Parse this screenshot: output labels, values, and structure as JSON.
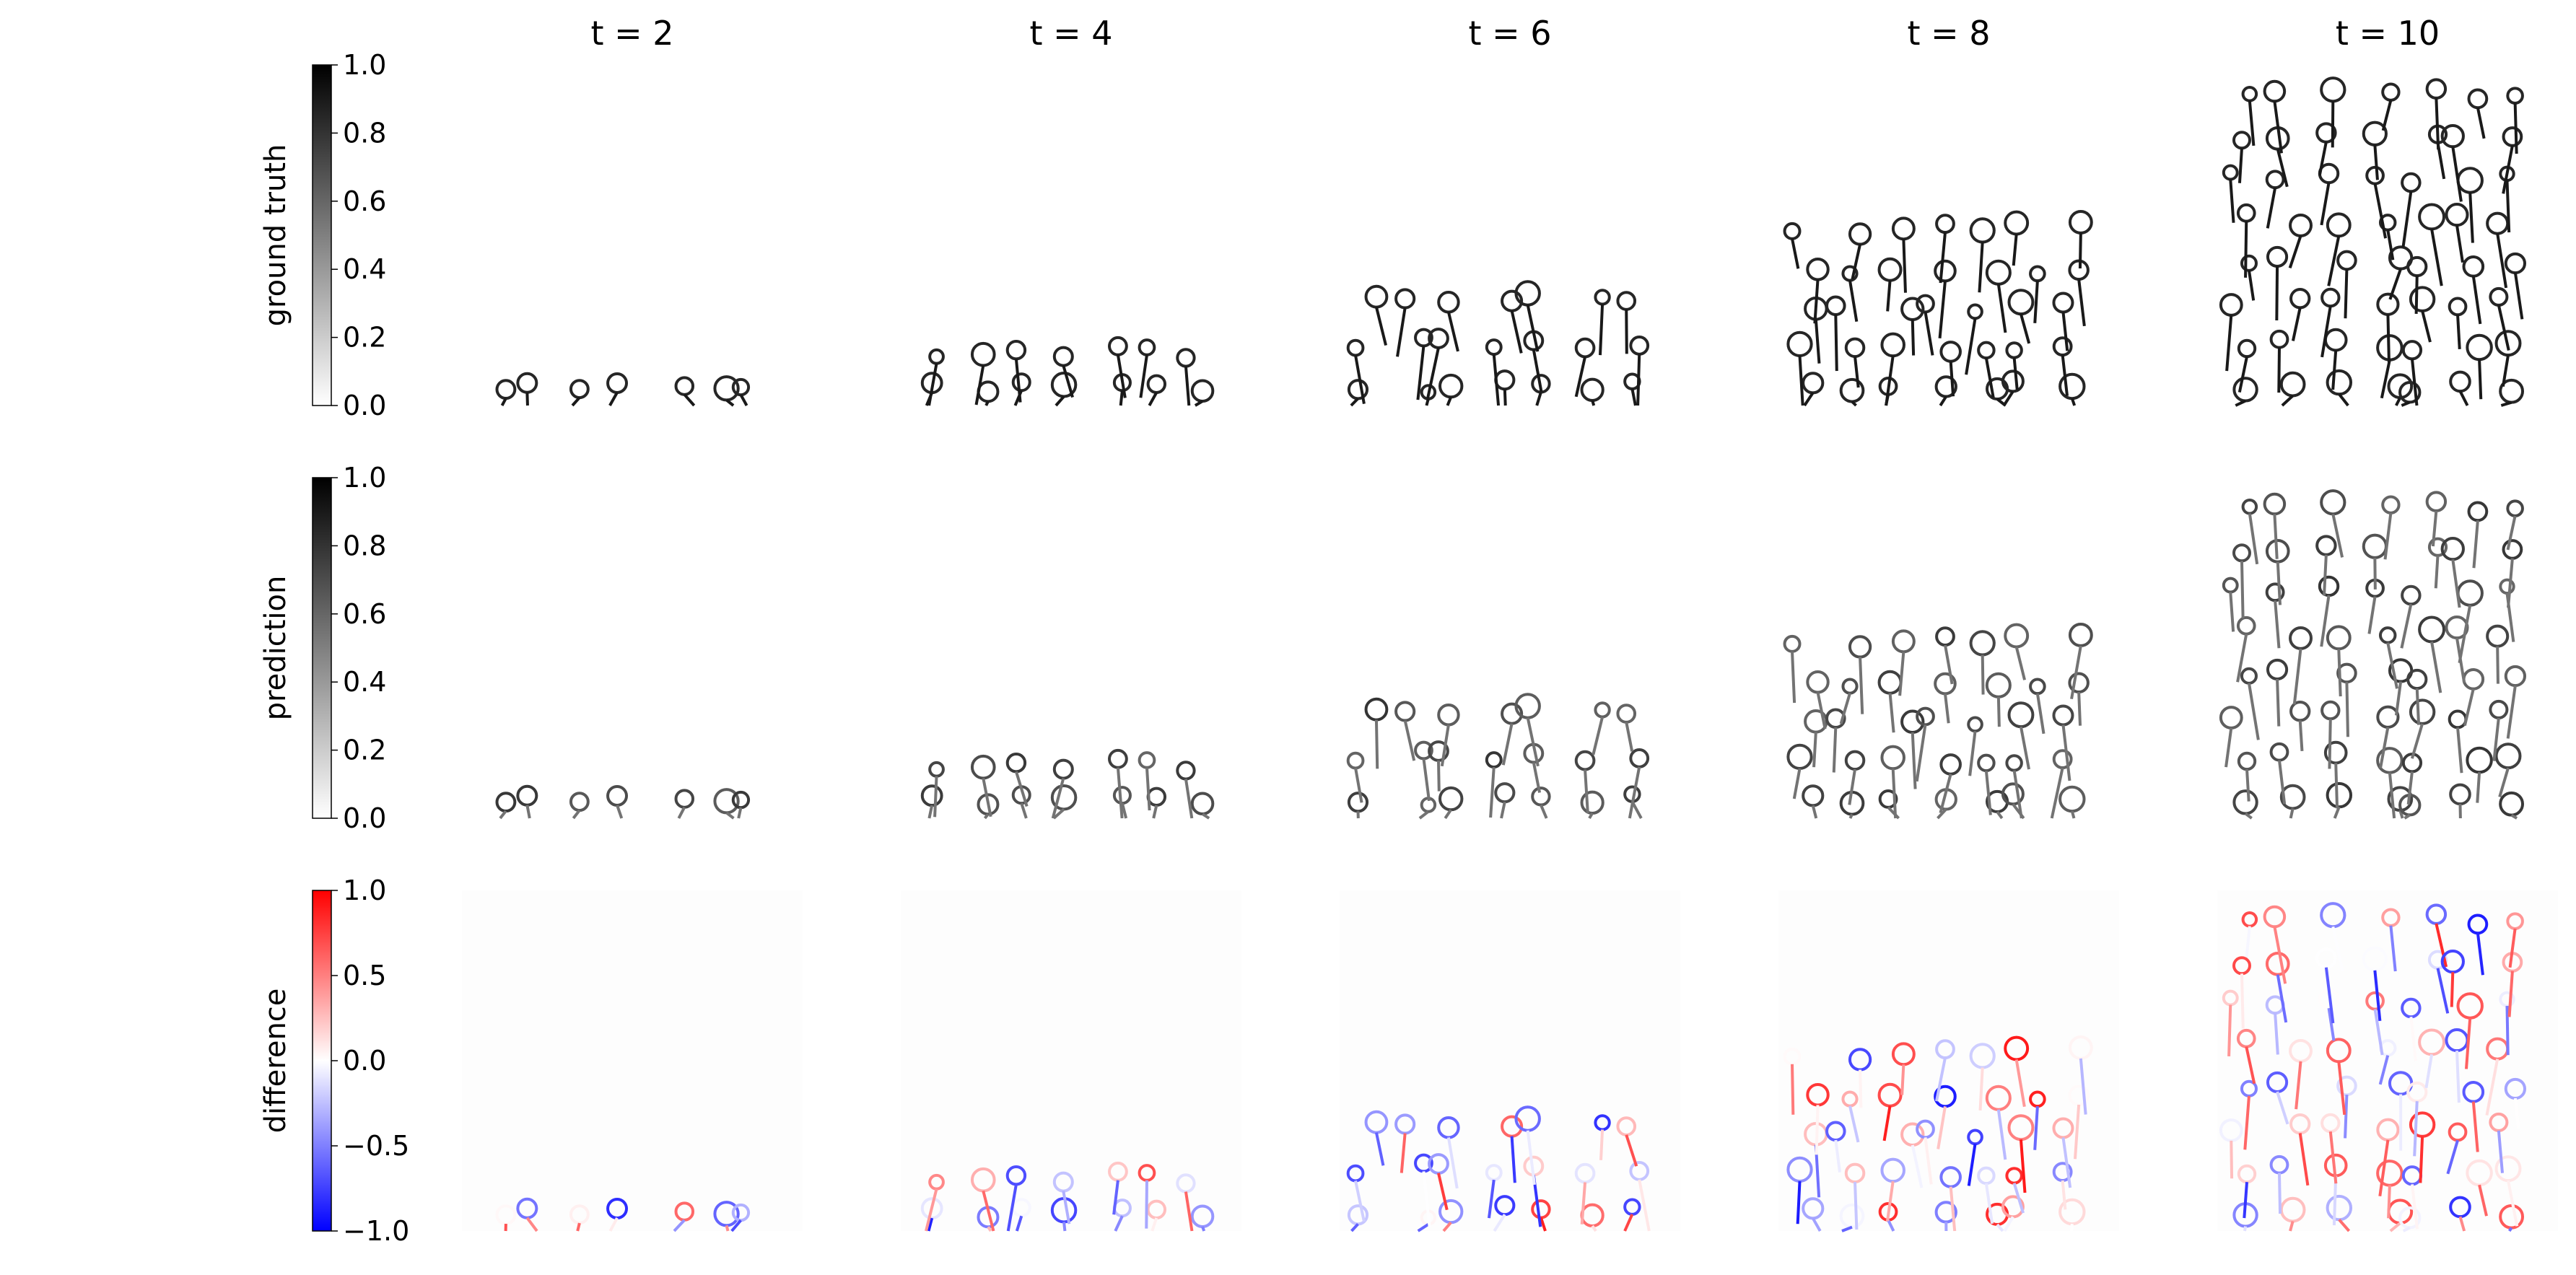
{
  "chart_data": {
    "type": "heatmap",
    "layout": "3 rows x 5 columns image grid with per-row colorbars",
    "columns": [
      "t = 2",
      "t = 4",
      "t = 6",
      "t = 8",
      "t = 10"
    ],
    "rows": [
      {
        "label": "ground truth",
        "colormap": "gray_r",
        "vmin": 0.0,
        "vmax": 1.0,
        "colorbar_ticks": [
          "0.0",
          "0.2",
          "0.4",
          "0.6",
          "0.8",
          "1.0"
        ],
        "colorbar_low": "#ffffff",
        "colorbar_high": "#000000"
      },
      {
        "label": "prediction",
        "colormap": "gray_r",
        "vmin": 0.0,
        "vmax": 1.0,
        "colorbar_ticks": [
          "0.0",
          "0.2",
          "0.4",
          "0.6",
          "0.8",
          "1.0"
        ],
        "colorbar_low": "#ffffff",
        "colorbar_high": "#000000"
      },
      {
        "label": "difference",
        "colormap": "bwr",
        "vmin": -1.0,
        "vmax": 1.0,
        "colorbar_ticks": [
          "−1.0",
          "−0.5",
          "0.0",
          "0.5",
          "1.0"
        ],
        "colorbar_low": "#0000ff",
        "colorbar_mid": "#ffffff",
        "colorbar_high": "#ff0000"
      }
    ],
    "growth_front_fraction": [
      0.07,
      0.2,
      0.38,
      0.58,
      0.98
    ],
    "grid": false,
    "axes_visible": false
  }
}
